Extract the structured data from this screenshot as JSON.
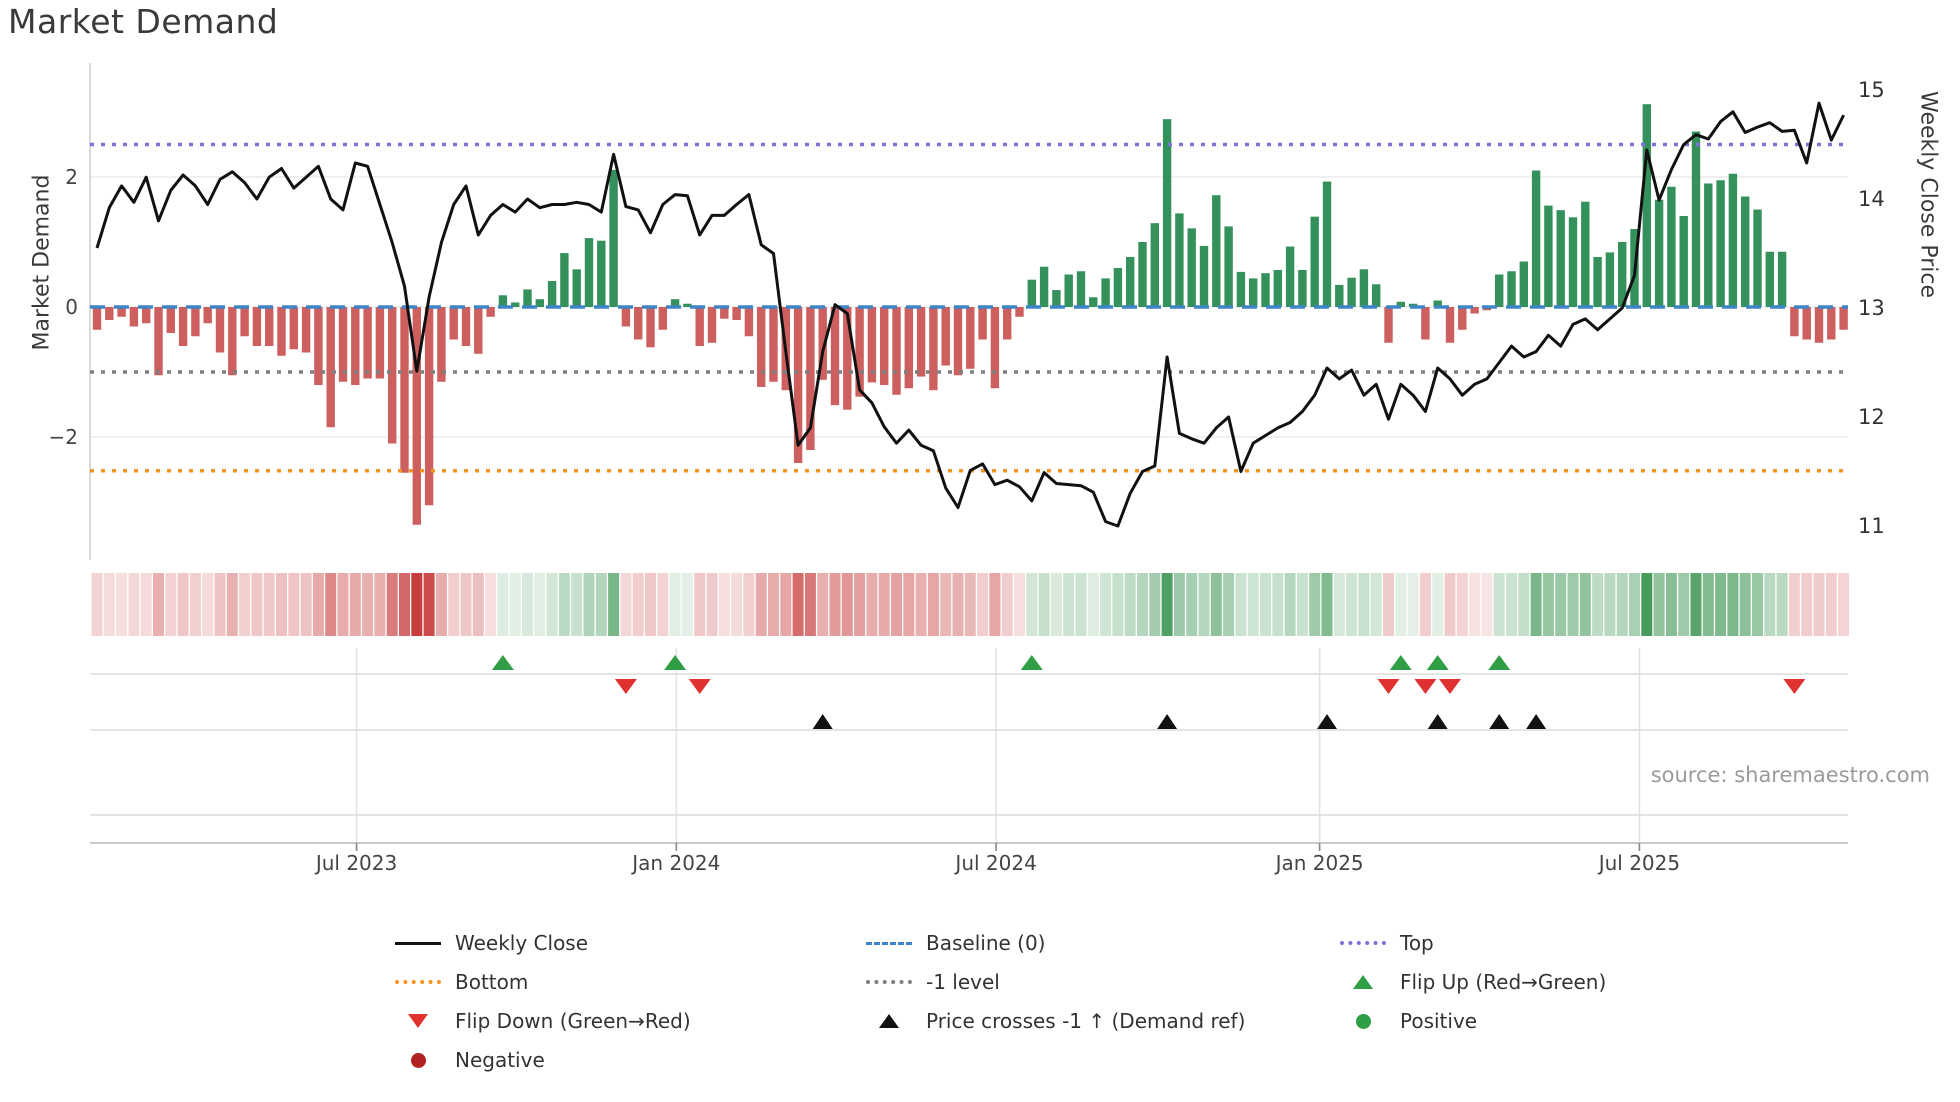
{
  "title": "Market Demand",
  "source": "source: sharemaestro.com",
  "axes": {
    "left_label": "Market Demand",
    "right_label": "Weekly Close Price",
    "left_ticks": [
      {
        "label": "2",
        "value": 2
      },
      {
        "label": "0",
        "value": 0
      },
      {
        "label": "−2",
        "value": -2
      }
    ],
    "right_ticks": [
      {
        "label": "15",
        "value": 15
      },
      {
        "label": "14",
        "value": 14
      },
      {
        "label": "13",
        "value": 13
      },
      {
        "label": "12",
        "value": 12
      },
      {
        "label": "11",
        "value": 11
      }
    ],
    "x_ticks": [
      {
        "label": "Jul 2023",
        "week": 21.1
      },
      {
        "label": "Jan 2024",
        "week": 47.1
      },
      {
        "label": "Jul 2024",
        "week": 73.1
      },
      {
        "label": "Jan 2025",
        "week": 99.4
      },
      {
        "label": "Jul 2025",
        "week": 125.4
      }
    ]
  },
  "colors": {
    "bar_positive": "#35915c",
    "bar_negative": "#cd5f5f",
    "price_line": "#111111",
    "baseline": "#3d85c6",
    "top_line": "#7b74d8",
    "bottom_line": "#f5941f",
    "minus1_line": "#7f7f7f",
    "flip_up": "#2f9e44",
    "flip_down": "#e03131",
    "price_cross": "#111111",
    "heat_red": "196,48,48",
    "heat_green": "44,140,68",
    "grid": "#ebebeb",
    "spine": "#d0d0d0",
    "axis_line": "#c9c9c9",
    "tick_text": "#444444"
  },
  "legend": {
    "items": [
      {
        "label": "Weekly Close",
        "type": "line",
        "cls": "solid-black"
      },
      {
        "label": "Baseline (0)",
        "type": "line",
        "cls": "dash-blue"
      },
      {
        "label": "Top",
        "type": "line",
        "cls": "dot-purple"
      },
      {
        "label": "Bottom",
        "type": "line",
        "cls": "dot-orange"
      },
      {
        "label": "-1 level",
        "type": "line",
        "cls": "dot-gray"
      },
      {
        "label": "Flip Up (Red→Green)",
        "type": "tri-up",
        "cls": ""
      },
      {
        "label": "Flip Down (Green→Red)",
        "type": "tri-down",
        "cls": ""
      },
      {
        "label": "Price crosses -1 ↑ (Demand ref)",
        "type": "tri-up",
        "cls": "black"
      },
      {
        "label": "Positive",
        "type": "dot",
        "cls": "green"
      },
      {
        "label": "Negative",
        "type": "dot",
        "cls": "darkred"
      }
    ]
  },
  "chart_data": {
    "type": "bar",
    "subtype": "bar+line dual-axis with heatmap strip and event marker rows",
    "x_unit": "weeks",
    "n_weeks": 143,
    "left_axis": {
      "label": "Market Demand",
      "ticks": [
        2,
        0,
        -2
      ]
    },
    "right_axis": {
      "label": "Weekly Close Price",
      "range": [
        11,
        15
      ]
    },
    "ref_lines": {
      "baseline": 0,
      "top": 2.5,
      "bottom": -2.52,
      "minus1": -1
    },
    "demand": [
      -0.35,
      -0.2,
      -0.15,
      -0.3,
      -0.25,
      -1.05,
      -0.4,
      -0.6,
      -0.45,
      -0.25,
      -0.7,
      -1.05,
      -0.45,
      -0.6,
      -0.6,
      -0.75,
      -0.65,
      -0.7,
      -1.2,
      -1.85,
      -1.15,
      -1.2,
      -1.1,
      -1.1,
      -2.1,
      -2.55,
      -3.35,
      -3.05,
      -1.15,
      -0.5,
      -0.6,
      -0.72,
      -0.15,
      0.18,
      0.07,
      0.27,
      0.12,
      0.4,
      0.83,
      0.58,
      1.06,
      1.02,
      2.11,
      -0.3,
      -0.5,
      -0.62,
      -0.35,
      0.12,
      0.05,
      -0.6,
      -0.55,
      -0.18,
      -0.2,
      -0.45,
      -1.23,
      -1.15,
      -1.28,
      -2.4,
      -2.2,
      -1.12,
      -1.51,
      -1.58,
      -1.38,
      -1.16,
      -1.2,
      -1.35,
      -1.25,
      -1.07,
      -1.28,
      -0.9,
      -1.05,
      -0.95,
      -0.5,
      -1.25,
      -0.5,
      -0.15,
      0.42,
      0.62,
      0.26,
      0.5,
      0.55,
      0.15,
      0.44,
      0.6,
      0.77,
      1.0,
      1.29,
      2.89,
      1.44,
      1.21,
      0.94,
      1.72,
      1.24,
      0.54,
      0.44,
      0.52,
      0.57,
      0.93,
      0.57,
      1.39,
      1.93,
      0.34,
      0.45,
      0.58,
      0.35,
      -0.55,
      0.08,
      0.05,
      -0.5,
      0.1,
      -0.55,
      -0.35,
      -0.1,
      -0.05,
      0.5,
      0.55,
      0.7,
      2.1,
      1.56,
      1.49,
      1.38,
      1.62,
      0.77,
      0.84,
      1.0,
      1.2,
      3.12,
      1.65,
      1.85,
      1.4,
      2.7,
      1.9,
      1.95,
      2.05,
      1.7,
      1.5,
      0.85,
      0.85,
      -0.45,
      -0.5,
      -0.55,
      -0.5,
      -0.35
    ],
    "price": [
      13.55,
      13.92,
      14.12,
      13.97,
      14.2,
      13.8,
      14.08,
      14.22,
      14.12,
      13.95,
      14.18,
      14.25,
      14.15,
      14.0,
      14.2,
      14.28,
      14.1,
      14.2,
      14.3,
      14.0,
      13.9,
      14.33,
      14.3,
      13.95,
      13.6,
      13.2,
      12.42,
      13.1,
      13.6,
      13.95,
      14.12,
      13.67,
      13.85,
      13.95,
      13.88,
      14.0,
      13.92,
      13.95,
      13.95,
      13.97,
      13.95,
      13.88,
      14.41,
      13.93,
      13.9,
      13.69,
      13.95,
      14.04,
      14.03,
      13.67,
      13.85,
      13.85,
      13.95,
      14.04,
      13.58,
      13.5,
      12.6,
      11.74,
      11.9,
      12.6,
      13.03,
      12.95,
      12.25,
      12.13,
      11.91,
      11.76,
      11.88,
      11.74,
      11.69,
      11.35,
      11.17,
      11.51,
      11.57,
      11.38,
      11.42,
      11.36,
      11.23,
      11.49,
      11.39,
      11.38,
      11.37,
      11.31,
      11.04,
      11.0,
      11.3,
      11.5,
      11.55,
      12.55,
      11.85,
      11.8,
      11.76,
      11.9,
      12.0,
      11.5,
      11.76,
      11.83,
      11.9,
      11.95,
      12.05,
      12.2,
      12.45,
      12.35,
      12.43,
      12.2,
      12.3,
      11.98,
      12.3,
      12.2,
      12.05,
      12.45,
      12.35,
      12.2,
      12.3,
      12.35,
      12.5,
      12.65,
      12.55,
      12.6,
      12.75,
      12.65,
      12.85,
      12.9,
      12.8,
      12.9,
      13.0,
      13.3,
      14.45,
      13.99,
      14.27,
      14.5,
      14.59,
      14.55,
      14.71,
      14.8,
      14.61,
      14.66,
      14.7,
      14.62,
      14.63,
      14.33,
      14.88,
      14.54,
      14.77
    ],
    "markers": {
      "flip_up_weeks": [
        33,
        47,
        76,
        106,
        109,
        114
      ],
      "flip_down_weeks": [
        43,
        49,
        105,
        108,
        110,
        138
      ],
      "price_cross_weeks": [
        59,
        87,
        100,
        109,
        114,
        117
      ]
    }
  }
}
